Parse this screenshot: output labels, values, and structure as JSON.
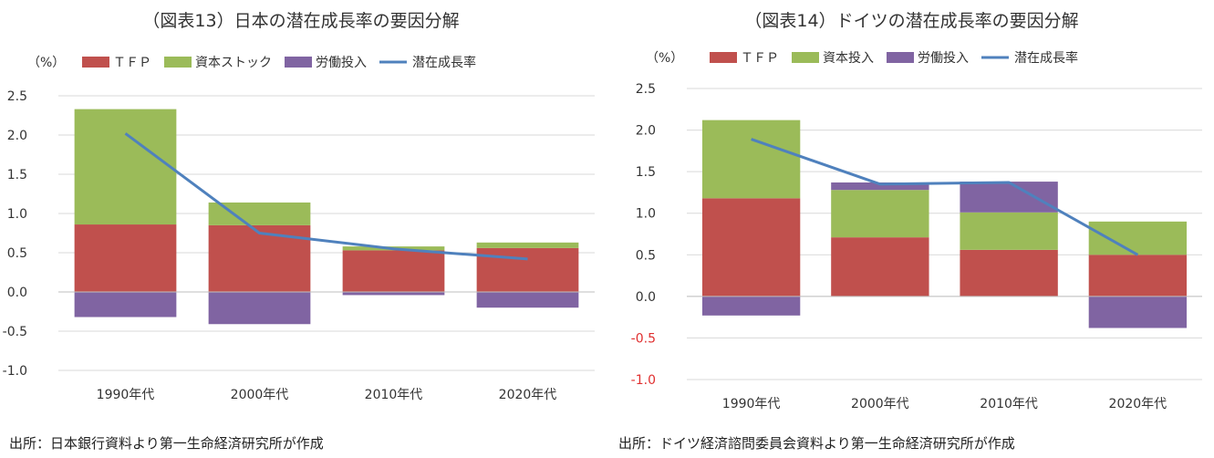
{
  "charts": {
    "jp": {
      "title": "（図表13）日本の潜在成長率の要因分解",
      "source": "出所：日本銀行資料より第一生命経済研究所が作成"
    },
    "de": {
      "title": "（図表14）ドイツの潜在成長率の要因分解",
      "source": "出所：ドイツ経済諮問委員会資料より第一生命経済研究所が作成"
    }
  },
  "chart_data": [
    {
      "type": "bar",
      "stacked": true,
      "title": "（図表13）日本の潜在成長率の要因分解",
      "unit_label": "（%）",
      "categories": [
        "1990年代",
        "2000年代",
        "2010年代",
        "2020年代"
      ],
      "series": [
        {
          "name": "ＴＦＰ",
          "type": "bar",
          "color": "#c0504d",
          "values": [
            0.86,
            0.85,
            0.53,
            0.56
          ]
        },
        {
          "name": "資本ストック",
          "type": "bar",
          "color": "#9bbb59",
          "values": [
            1.47,
            0.29,
            0.05,
            0.07
          ]
        },
        {
          "name": "労働投入",
          "type": "bar",
          "color": "#8064a2",
          "values": [
            -0.32,
            -0.41,
            -0.04,
            -0.2
          ]
        },
        {
          "name": "潜在成長率",
          "type": "line",
          "color": "#4f81bd",
          "values": [
            2.02,
            0.75,
            0.55,
            0.42
          ]
        }
      ],
      "ylim": [
        -1.0,
        2.5
      ],
      "yticks": [
        "2.5",
        "2.0",
        "1.5",
        "1.0",
        "0.5",
        "0.0",
        "-0.5",
        "-1.0"
      ],
      "negative_tick_color": "#333333",
      "grid": true,
      "legend": "top"
    },
    {
      "type": "bar",
      "stacked": true,
      "title": "（図表14）ドイツの潜在成長率の要因分解",
      "unit_label": "（%）",
      "categories": [
        "1990年代",
        "2000年代",
        "2010年代",
        "2020年代"
      ],
      "series": [
        {
          "name": "ＴＦＰ",
          "type": "bar",
          "color": "#c0504d",
          "values": [
            1.18,
            0.71,
            0.56,
            0.5
          ]
        },
        {
          "name": "資本投入",
          "type": "bar",
          "color": "#9bbb59",
          "values": [
            0.94,
            0.57,
            0.45,
            0.4
          ]
        },
        {
          "name": "労働投入",
          "type": "bar",
          "color": "#8064a2",
          "values": [
            -0.23,
            0.09,
            0.37,
            -0.38
          ]
        },
        {
          "name": "潜在成長率",
          "type": "line",
          "color": "#4f81bd",
          "values": [
            1.89,
            1.35,
            1.37,
            0.5
          ]
        }
      ],
      "ylim": [
        -1.0,
        2.5
      ],
      "yticks": [
        "2.5",
        "2.0",
        "1.5",
        "1.0",
        "0.5",
        "0.0",
        "-0.5",
        "-1.0"
      ],
      "negative_tick_color": "#e03030",
      "grid": true,
      "legend": "top"
    }
  ]
}
